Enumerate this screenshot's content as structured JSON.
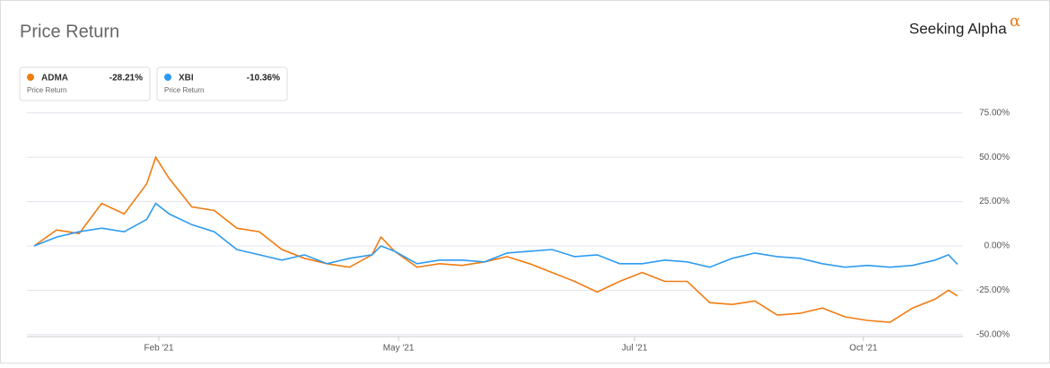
{
  "chart_data": {
    "type": "line",
    "title": "Price Return",
    "brand": "Seeking Alpha",
    "brand_mark": "α",
    "x": [
      0,
      5,
      10,
      15,
      20,
      25,
      27,
      30,
      35,
      40,
      45,
      50,
      55,
      60,
      65,
      70,
      75,
      77,
      80,
      85,
      90,
      95,
      100,
      105,
      110,
      115,
      120,
      125,
      130,
      135,
      140,
      145,
      150,
      155,
      160,
      165,
      170,
      175,
      180,
      185,
      190,
      195,
      200,
      203,
      205
    ],
    "xlim": [
      0,
      206
    ],
    "xticks": [
      {
        "value": 27.7,
        "label": "Feb '21"
      },
      {
        "value": 80.9,
        "label": "May '21"
      },
      {
        "value": 133.3,
        "label": "Jul '21"
      },
      {
        "value": 184.1,
        "label": "Oct '21"
      }
    ],
    "ylim": [
      -51,
      76
    ],
    "yticks": [
      {
        "value": -50,
        "label": "-50.00%"
      },
      {
        "value": -25,
        "label": "-25.00%"
      },
      {
        "value": 0,
        "label": "0.00%"
      },
      {
        "value": 25,
        "label": "25.00%"
      },
      {
        "value": 50,
        "label": "50.00%"
      },
      {
        "value": 75,
        "label": "75.00%"
      }
    ],
    "grid": true,
    "series": [
      {
        "name": "ADMA",
        "color": "#f07c12",
        "legend_value": "-28.21%",
        "legend_subtitle": "Price Return",
        "values": [
          0,
          9,
          7,
          24,
          18,
          35,
          50,
          38,
          22,
          20,
          10,
          8,
          -2,
          -7,
          -10,
          -12,
          -5,
          5,
          -3,
          -12,
          -10,
          -11,
          -9,
          -6,
          -10,
          -15,
          -20,
          -26,
          -20,
          -15,
          -20,
          -20,
          -32,
          -33,
          -31,
          -39,
          -38,
          -35,
          -40,
          -42,
          -43,
          -35,
          -30,
          -25,
          -28.21
        ]
      },
      {
        "name": "XBI",
        "color": "#2e9bf0",
        "legend_value": "-10.36%",
        "legend_subtitle": "Price Return",
        "values": [
          0,
          5,
          8,
          10,
          8,
          15,
          24,
          18,
          12,
          8,
          -2,
          -5,
          -8,
          -5,
          -10,
          -7,
          -5,
          0,
          -3,
          -10,
          -8,
          -8,
          -9,
          -4,
          -3,
          -2,
          -6,
          -5,
          -10,
          -10,
          -8,
          -9,
          -12,
          -7,
          -4,
          -6,
          -7,
          -10,
          -12,
          -11,
          -12,
          -11,
          -8,
          -5,
          -10.36
        ]
      }
    ]
  }
}
